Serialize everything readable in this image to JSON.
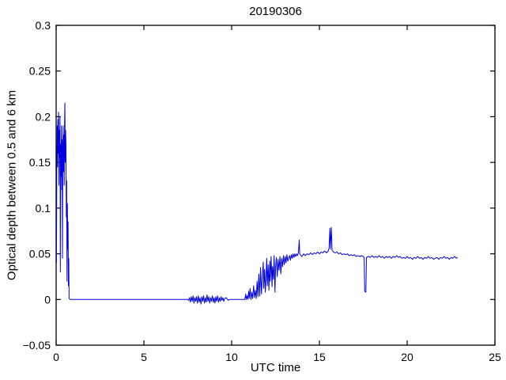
{
  "chart_data": {
    "type": "line",
    "title": "20190306",
    "xlabel": "UTC time",
    "ylabel": "Optical depth between 0.5 and 6 km",
    "xlim": [
      0,
      25
    ],
    "ylim": [
      -0.05,
      0.3
    ],
    "xticks": [
      0,
      5,
      10,
      15,
      20,
      25
    ],
    "xtick_labels": [
      "0",
      "5",
      "10",
      "15",
      "20",
      "25"
    ],
    "yticks": [
      -0.05,
      0,
      0.05,
      0.1,
      0.15,
      0.2,
      0.25,
      0.3
    ],
    "ytick_labels": [
      "−0.05",
      "0",
      "0.05",
      "0.1",
      "0.15",
      "0.2",
      "0.25",
      "0.3"
    ],
    "grid": false,
    "legend_position": "none",
    "line_color": "#0000e0",
    "axis_color": "#000000",
    "background_color": "#ffffff",
    "series": [
      {
        "name": "optical-depth-trace",
        "points": [
          [
            0.02,
            0.04
          ],
          [
            0.04,
            0.155
          ],
          [
            0.06,
            0.19
          ],
          [
            0.08,
            0.145
          ],
          [
            0.1,
            0.197
          ],
          [
            0.12,
            0.16
          ],
          [
            0.14,
            0.205
          ],
          [
            0.16,
            0.125
          ],
          [
            0.18,
            0.185
          ],
          [
            0.2,
            0.155
          ],
          [
            0.22,
            0.2
          ],
          [
            0.24,
            0.03
          ],
          [
            0.26,
            0.17
          ],
          [
            0.28,
            0.135
          ],
          [
            0.3,
            0.19
          ],
          [
            0.32,
            0.12
          ],
          [
            0.34,
            0.175
          ],
          [
            0.36,
            0.045
          ],
          [
            0.38,
            0.16
          ],
          [
            0.4,
            0.19
          ],
          [
            0.42,
            0.14
          ],
          [
            0.44,
            0.18
          ],
          [
            0.46,
            0.125
          ],
          [
            0.48,
            0.195
          ],
          [
            0.5,
            0.215
          ],
          [
            0.52,
            0.15
          ],
          [
            0.54,
            0.185
          ],
          [
            0.56,
            0.17
          ],
          [
            0.58,
            0.09
          ],
          [
            0.6,
            0.13
          ],
          [
            0.62,
            0.02
          ],
          [
            0.64,
            0.105
          ],
          [
            0.66,
            0.055
          ],
          [
            0.68,
            0.085
          ],
          [
            0.7,
            0.015
          ],
          [
            0.72,
            0.045
          ],
          [
            0.74,
            0.001
          ],
          [
            0.8,
            0
          ],
          [
            2,
            0
          ],
          [
            4,
            0
          ],
          [
            6,
            0
          ],
          [
            7.5,
            0
          ],
          [
            7.55,
            -0.001
          ],
          [
            7.6,
            0.002
          ],
          [
            7.65,
            -0.003
          ],
          [
            7.7,
            0.003
          ],
          [
            7.75,
            -0.002
          ],
          [
            7.8,
            0.004
          ],
          [
            7.85,
            -0.004
          ],
          [
            7.9,
            0.002
          ],
          [
            7.95,
            -0.002
          ],
          [
            8,
            0.003
          ],
          [
            8.05,
            -0.004
          ],
          [
            8.1,
            0.004
          ],
          [
            8.15,
            -0.003
          ],
          [
            8.2,
            0.002
          ],
          [
            8.25,
            -0.005
          ],
          [
            8.3,
            0.003
          ],
          [
            8.35,
            -0.002
          ],
          [
            8.4,
            0.004
          ],
          [
            8.45,
            -0.004
          ],
          [
            8.5,
            0.002
          ],
          [
            8.55,
            -0.003
          ],
          [
            8.6,
            0.005
          ],
          [
            8.65,
            -0.002
          ],
          [
            8.7,
            0.003
          ],
          [
            8.75,
            -0.004
          ],
          [
            8.8,
            0.002
          ],
          [
            8.85,
            -0.002
          ],
          [
            8.9,
            0.004
          ],
          [
            8.95,
            -0.003
          ],
          [
            9,
            0.002
          ],
          [
            9.05,
            -0.004
          ],
          [
            9.1,
            0.003
          ],
          [
            9.15,
            -0.002
          ],
          [
            9.2,
            0.004
          ],
          [
            9.25,
            -0.003
          ],
          [
            9.3,
            0.002
          ],
          [
            9.35,
            -0.002
          ],
          [
            9.4,
            0.003
          ],
          [
            9.45,
            -0.001
          ],
          [
            9.5,
            0.002
          ],
          [
            9.55,
            -0.002
          ],
          [
            9.6,
            0.001
          ],
          [
            9.7,
            0.002
          ],
          [
            9.8,
            -0.001
          ],
          [
            9.85,
            0
          ],
          [
            9.9,
            0
          ],
          [
            10.3,
            0
          ],
          [
            10.75,
            0
          ],
          [
            10.8,
            0.006
          ],
          [
            10.83,
            0
          ],
          [
            10.88,
            0.004
          ],
          [
            10.92,
            0
          ],
          [
            10.97,
            0.009
          ],
          [
            11,
            0.001
          ],
          [
            11.05,
            0.012
          ],
          [
            11.1,
            0
          ],
          [
            11.15,
            0.008
          ],
          [
            11.2,
            0.001
          ],
          [
            11.25,
            0.015
          ],
          [
            11.3,
            0.002
          ],
          [
            11.35,
            0.01
          ],
          [
            11.4,
            0.001
          ],
          [
            11.45,
            0.02
          ],
          [
            11.5,
            0.003
          ],
          [
            11.55,
            0.028
          ],
          [
            11.6,
            0.004
          ],
          [
            11.65,
            0.035
          ],
          [
            11.7,
            0.006
          ],
          [
            11.75,
            0.025
          ],
          [
            11.8,
            0.041
          ],
          [
            11.83,
            0.012
          ],
          [
            11.88,
            0.033
          ],
          [
            11.92,
            0.008
          ],
          [
            11.97,
            0.029
          ],
          [
            12,
            0.045
          ],
          [
            12.03,
            0.015
          ],
          [
            12.08,
            0.038
          ],
          [
            12.12,
            0.01
          ],
          [
            12.17,
            0.042
          ],
          [
            12.2,
            0.02
          ],
          [
            12.25,
            0.047
          ],
          [
            12.3,
            0.014
          ],
          [
            12.33,
            0.036
          ],
          [
            12.38,
            0.022
          ],
          [
            12.42,
            0.048
          ],
          [
            12.47,
            0.008
          ],
          [
            12.5,
            0.035
          ],
          [
            12.55,
            0.046
          ],
          [
            12.6,
            0.025
          ],
          [
            12.65,
            0.044
          ],
          [
            12.7,
            0.032
          ],
          [
            12.75,
            0.047
          ],
          [
            12.8,
            0.028
          ],
          [
            12.85,
            0.045
          ],
          [
            12.9,
            0.036
          ],
          [
            12.95,
            0.048
          ],
          [
            13,
            0.038
          ],
          [
            13.05,
            0.047
          ],
          [
            13.1,
            0.04
          ],
          [
            13.15,
            0.049
          ],
          [
            13.2,
            0.042
          ],
          [
            13.3,
            0.048
          ],
          [
            13.35,
            0.043
          ],
          [
            13.4,
            0.049
          ],
          [
            13.45,
            0.045
          ],
          [
            13.5,
            0.05
          ],
          [
            13.55,
            0.046
          ],
          [
            13.6,
            0.05
          ],
          [
            13.65,
            0.047
          ],
          [
            13.7,
            0.05
          ],
          [
            13.75,
            0.048
          ],
          [
            13.8,
            0.051
          ],
          [
            13.85,
            0.065
          ],
          [
            13.88,
            0.05
          ],
          [
            13.95,
            0.048
          ],
          [
            14,
            0.047
          ],
          [
            14.1,
            0.05
          ],
          [
            14.2,
            0.048
          ],
          [
            14.3,
            0.05
          ],
          [
            14.4,
            0.049
          ],
          [
            14.5,
            0.051
          ],
          [
            14.6,
            0.049
          ],
          [
            14.7,
            0.051
          ],
          [
            14.8,
            0.05
          ],
          [
            14.9,
            0.052
          ],
          [
            15,
            0.05
          ],
          [
            15.1,
            0.052
          ],
          [
            15.2,
            0.051
          ],
          [
            15.3,
            0.053
          ],
          [
            15.4,
            0.051
          ],
          [
            15.5,
            0.053
          ],
          [
            15.55,
            0.056
          ],
          [
            15.6,
            0.078
          ],
          [
            15.63,
            0.055
          ],
          [
            15.68,
            0.079
          ],
          [
            15.72,
            0.054
          ],
          [
            15.8,
            0.052
          ],
          [
            15.9,
            0.051
          ],
          [
            16,
            0.052
          ],
          [
            16.1,
            0.05
          ],
          [
            16.2,
            0.051
          ],
          [
            16.3,
            0.049
          ],
          [
            16.4,
            0.05
          ],
          [
            16.5,
            0.049
          ],
          [
            16.6,
            0.05
          ],
          [
            16.7,
            0.048
          ],
          [
            16.8,
            0.049
          ],
          [
            16.9,
            0.048
          ],
          [
            17,
            0.049
          ],
          [
            17.1,
            0.047
          ],
          [
            17.2,
            0.048
          ],
          [
            17.3,
            0.047
          ],
          [
            17.4,
            0.048
          ],
          [
            17.5,
            0.047
          ],
          [
            17.55,
            0.046
          ],
          [
            17.58,
            0.009
          ],
          [
            17.65,
            0.008
          ],
          [
            17.68,
            0.046
          ],
          [
            17.8,
            0.047
          ],
          [
            17.9,
            0.046
          ],
          [
            18,
            0.048
          ],
          [
            18.1,
            0.046
          ],
          [
            18.2,
            0.047
          ],
          [
            18.3,
            0.046
          ],
          [
            18.4,
            0.048
          ],
          [
            18.5,
            0.046
          ],
          [
            18.6,
            0.047
          ],
          [
            18.7,
            0.045
          ],
          [
            18.8,
            0.047
          ],
          [
            18.9,
            0.046
          ],
          [
            19,
            0.047
          ],
          [
            19.1,
            0.045
          ],
          [
            19.2,
            0.047
          ],
          [
            19.3,
            0.046
          ],
          [
            19.4,
            0.048
          ],
          [
            19.5,
            0.046
          ],
          [
            19.6,
            0.047
          ],
          [
            19.7,
            0.045
          ],
          [
            19.8,
            0.046
          ],
          [
            19.9,
            0.045
          ],
          [
            20,
            0.047
          ],
          [
            20.1,
            0.045
          ],
          [
            20.2,
            0.046
          ],
          [
            20.3,
            0.044
          ],
          [
            20.4,
            0.046
          ],
          [
            20.5,
            0.045
          ],
          [
            20.6,
            0.047
          ],
          [
            20.7,
            0.045
          ],
          [
            20.8,
            0.046
          ],
          [
            20.9,
            0.044
          ],
          [
            21,
            0.046
          ],
          [
            21.1,
            0.045
          ],
          [
            21.2,
            0.047
          ],
          [
            21.3,
            0.045
          ],
          [
            21.4,
            0.046
          ],
          [
            21.5,
            0.044
          ],
          [
            21.6,
            0.045
          ],
          [
            21.7,
            0.046
          ],
          [
            21.8,
            0.044
          ],
          [
            21.9,
            0.046
          ],
          [
            22,
            0.045
          ],
          [
            22.1,
            0.047
          ],
          [
            22.2,
            0.045
          ],
          [
            22.3,
            0.046
          ],
          [
            22.4,
            0.044
          ],
          [
            22.5,
            0.046
          ],
          [
            22.6,
            0.045
          ],
          [
            22.7,
            0.047
          ],
          [
            22.8,
            0.045
          ],
          [
            22.85,
            0.046
          ]
        ]
      }
    ]
  }
}
